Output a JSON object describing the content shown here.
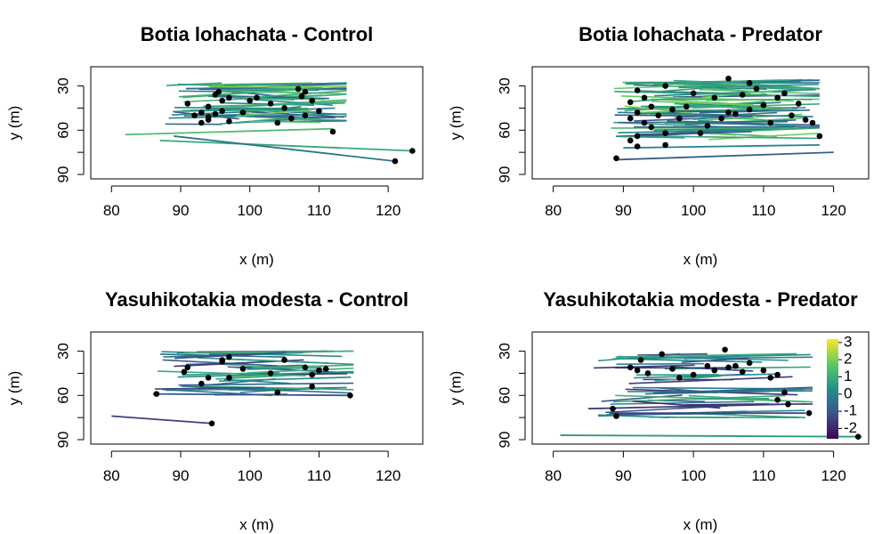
{
  "chart_data": [
    {
      "type": "line",
      "title": "Botia lohachata - Control",
      "xlabel": "x (m)",
      "ylabel": "y (m)",
      "xlim": [
        77,
        125
      ],
      "ylim": [
        93,
        17
      ],
      "xticks": [
        80,
        90,
        100,
        110,
        120
      ],
      "yticks": [
        30,
        45,
        60,
        75,
        90
      ],
      "ytick_labels": [
        "30",
        "",
        "60",
        "",
        "90"
      ],
      "seed": 11,
      "n_tracks": 55,
      "x_range": [
        87,
        114
      ],
      "y_range": [
        28,
        56
      ],
      "extra_tracks": [
        {
          "x": [
            87,
            123.5
          ],
          "y": [
            67,
            74
          ],
          "c": 0.6
        },
        {
          "x": [
            89,
            121
          ],
          "y": [
            64,
            81
          ],
          "c": 0.4
        },
        {
          "x": [
            82,
            112
          ],
          "y": [
            63,
            59
          ],
          "c": 0.7
        }
      ],
      "points": [
        [
          95,
          36
        ],
        [
          95.5,
          34
        ],
        [
          96,
          40
        ],
        [
          94,
          44
        ],
        [
          93,
          48
        ],
        [
          92,
          50
        ],
        [
          91,
          42
        ],
        [
          94,
          51
        ],
        [
          96,
          47
        ],
        [
          97,
          38
        ],
        [
          99,
          48
        ],
        [
          107,
          32
        ],
        [
          107.5,
          37
        ],
        [
          108,
          34
        ],
        [
          109,
          40
        ],
        [
          110,
          47
        ],
        [
          108,
          50
        ],
        [
          106,
          52
        ],
        [
          104,
          55
        ],
        [
          100,
          40
        ],
        [
          112,
          61
        ],
        [
          123.5,
          74
        ],
        [
          121,
          81
        ],
        [
          97,
          54
        ],
        [
          94,
          53
        ],
        [
          93,
          55
        ],
        [
          95,
          49
        ],
        [
          105,
          45
        ],
        [
          103,
          42
        ],
        [
          101,
          38
        ]
      ]
    },
    {
      "type": "line",
      "title": "Botia lohachata - Predator",
      "xlabel": "x (m)",
      "ylabel": "y (m)",
      "xlim": [
        77,
        125
      ],
      "ylim": [
        93,
        17
      ],
      "xticks": [
        80,
        90,
        100,
        110,
        120
      ],
      "yticks": [
        30,
        45,
        60,
        75,
        90
      ],
      "ytick_labels": [
        "30",
        "",
        "60",
        "",
        "90"
      ],
      "seed": 23,
      "n_tracks": 80,
      "x_range": [
        88,
        118
      ],
      "y_range": [
        26,
        68
      ],
      "extra_tracks": [
        {
          "x": [
            89,
            120
          ],
          "y": [
            80,
            75
          ],
          "c": 0.3
        },
        {
          "x": [
            90,
            118
          ],
          "y": [
            72,
            70
          ],
          "c": 0.45
        }
      ],
      "points": [
        [
          105,
          25
        ],
        [
          96,
          30
        ],
        [
          92,
          33
        ],
        [
          91,
          41
        ],
        [
          93,
          38
        ],
        [
          94,
          44
        ],
        [
          92,
          48
        ],
        [
          91,
          52
        ],
        [
          93,
          55
        ],
        [
          95,
          50
        ],
        [
          97,
          46
        ],
        [
          94,
          58
        ],
        [
          96,
          62
        ],
        [
          92,
          64
        ],
        [
          91,
          67
        ],
        [
          89,
          79
        ],
        [
          96,
          70
        ],
        [
          92,
          71
        ],
        [
          101,
          62
        ],
        [
          102,
          57
        ],
        [
          104,
          52
        ],
        [
          106,
          49
        ],
        [
          108,
          46
        ],
        [
          110,
          43
        ],
        [
          112,
          38
        ],
        [
          113,
          35
        ],
        [
          115,
          42
        ],
        [
          116,
          53
        ],
        [
          117,
          55
        ],
        [
          118,
          64
        ],
        [
          109,
          32
        ],
        [
          108,
          28
        ],
        [
          107,
          36
        ],
        [
          105,
          48
        ],
        [
          103,
          38
        ],
        [
          99,
          44
        ],
        [
          98,
          52
        ],
        [
          100,
          35
        ],
        [
          111,
          55
        ],
        [
          114,
          50
        ]
      ]
    },
    {
      "type": "line",
      "title": "Yasuhikotakia modesta - Control",
      "xlabel": "x (m)",
      "ylabel": "y (m)",
      "xlim": [
        77,
        125
      ],
      "ylim": [
        93,
        17
      ],
      "xticks": [
        80,
        90,
        100,
        110,
        120
      ],
      "yticks": [
        30,
        45,
        60,
        75,
        90
      ],
      "ytick_labels": [
        "30",
        "",
        "60",
        "",
        "90"
      ],
      "seed": 37,
      "n_tracks": 40,
      "x_range": [
        86,
        115
      ],
      "y_range": [
        30,
        60
      ],
      "extra_tracks": [
        {
          "x": [
            80,
            94.5
          ],
          "y": [
            74,
            79
          ],
          "c": 0.2
        },
        {
          "x": [
            86,
            114.5
          ],
          "y": [
            59,
            60
          ],
          "c": 0.25
        }
      ],
      "points": [
        [
          86.5,
          59
        ],
        [
          91,
          41
        ],
        [
          90.5,
          44
        ],
        [
          93,
          52
        ],
        [
          94,
          48
        ],
        [
          96,
          36
        ],
        [
          97,
          34
        ],
        [
          97,
          48
        ],
        [
          99,
          42
        ],
        [
          104,
          58
        ],
        [
          105,
          36
        ],
        [
          108,
          41
        ],
        [
          109,
          46
        ],
        [
          109,
          54
        ],
        [
          110,
          43
        ],
        [
          111,
          42
        ],
        [
          114.5,
          60
        ],
        [
          94.5,
          79
        ],
        [
          96,
          37
        ],
        [
          103,
          45
        ]
      ]
    },
    {
      "type": "line",
      "title": "Yasuhikotakia modesta - Predator",
      "xlabel": "x (m)",
      "ylabel": "y (m)",
      "xlim": [
        77,
        125
      ],
      "ylim": [
        93,
        17
      ],
      "xticks": [
        80,
        90,
        100,
        110,
        120
      ],
      "yticks": [
        30,
        45,
        60,
        75,
        90
      ],
      "ytick_labels": [
        "30",
        "",
        "60",
        "",
        "90"
      ],
      "seed": 53,
      "n_tracks": 45,
      "x_range": [
        85,
        117
      ],
      "y_range": [
        30,
        75
      ],
      "extra_tracks": [
        {
          "x": [
            81,
            124
          ],
          "y": [
            87,
            88
          ],
          "c": 0.55
        },
        {
          "x": [
            85,
            113
          ],
          "y": [
            69,
            66
          ],
          "c": 0.18
        },
        {
          "x": [
            88,
            116
          ],
          "y": [
            72,
            72
          ],
          "c": 0.22
        }
      ],
      "points": [
        [
          104.5,
          29
        ],
        [
          95.5,
          32
        ],
        [
          92.5,
          36
        ],
        [
          91,
          41
        ],
        [
          92,
          43
        ],
        [
          93.5,
          45
        ],
        [
          98,
          48
        ],
        [
          100,
          46
        ],
        [
          103,
          43
        ],
        [
          105,
          41
        ],
        [
          106,
          40
        ],
        [
          107,
          44
        ],
        [
          110,
          43
        ],
        [
          111,
          48
        ],
        [
          112,
          46
        ],
        [
          113,
          58
        ],
        [
          112,
          63
        ],
        [
          113.5,
          66
        ],
        [
          116.5,
          72
        ],
        [
          88.5,
          69
        ],
        [
          89,
          74
        ],
        [
          123.5,
          88
        ],
        [
          97,
          42
        ],
        [
          102,
          40
        ],
        [
          108,
          38
        ]
      ],
      "colorbar": {
        "min": -2.6,
        "max": 3.2,
        "ticks": [
          3,
          2,
          1,
          0,
          -1,
          -2
        ],
        "tick_labels": [
          "3",
          "2",
          "1",
          "0",
          "-1",
          "-2"
        ]
      }
    }
  ],
  "colors": {
    "viridis": [
      "#440154",
      "#3b528b",
      "#21908c",
      "#5dc863",
      "#fde725"
    ],
    "point": "#000000",
    "axis": "#000000"
  }
}
